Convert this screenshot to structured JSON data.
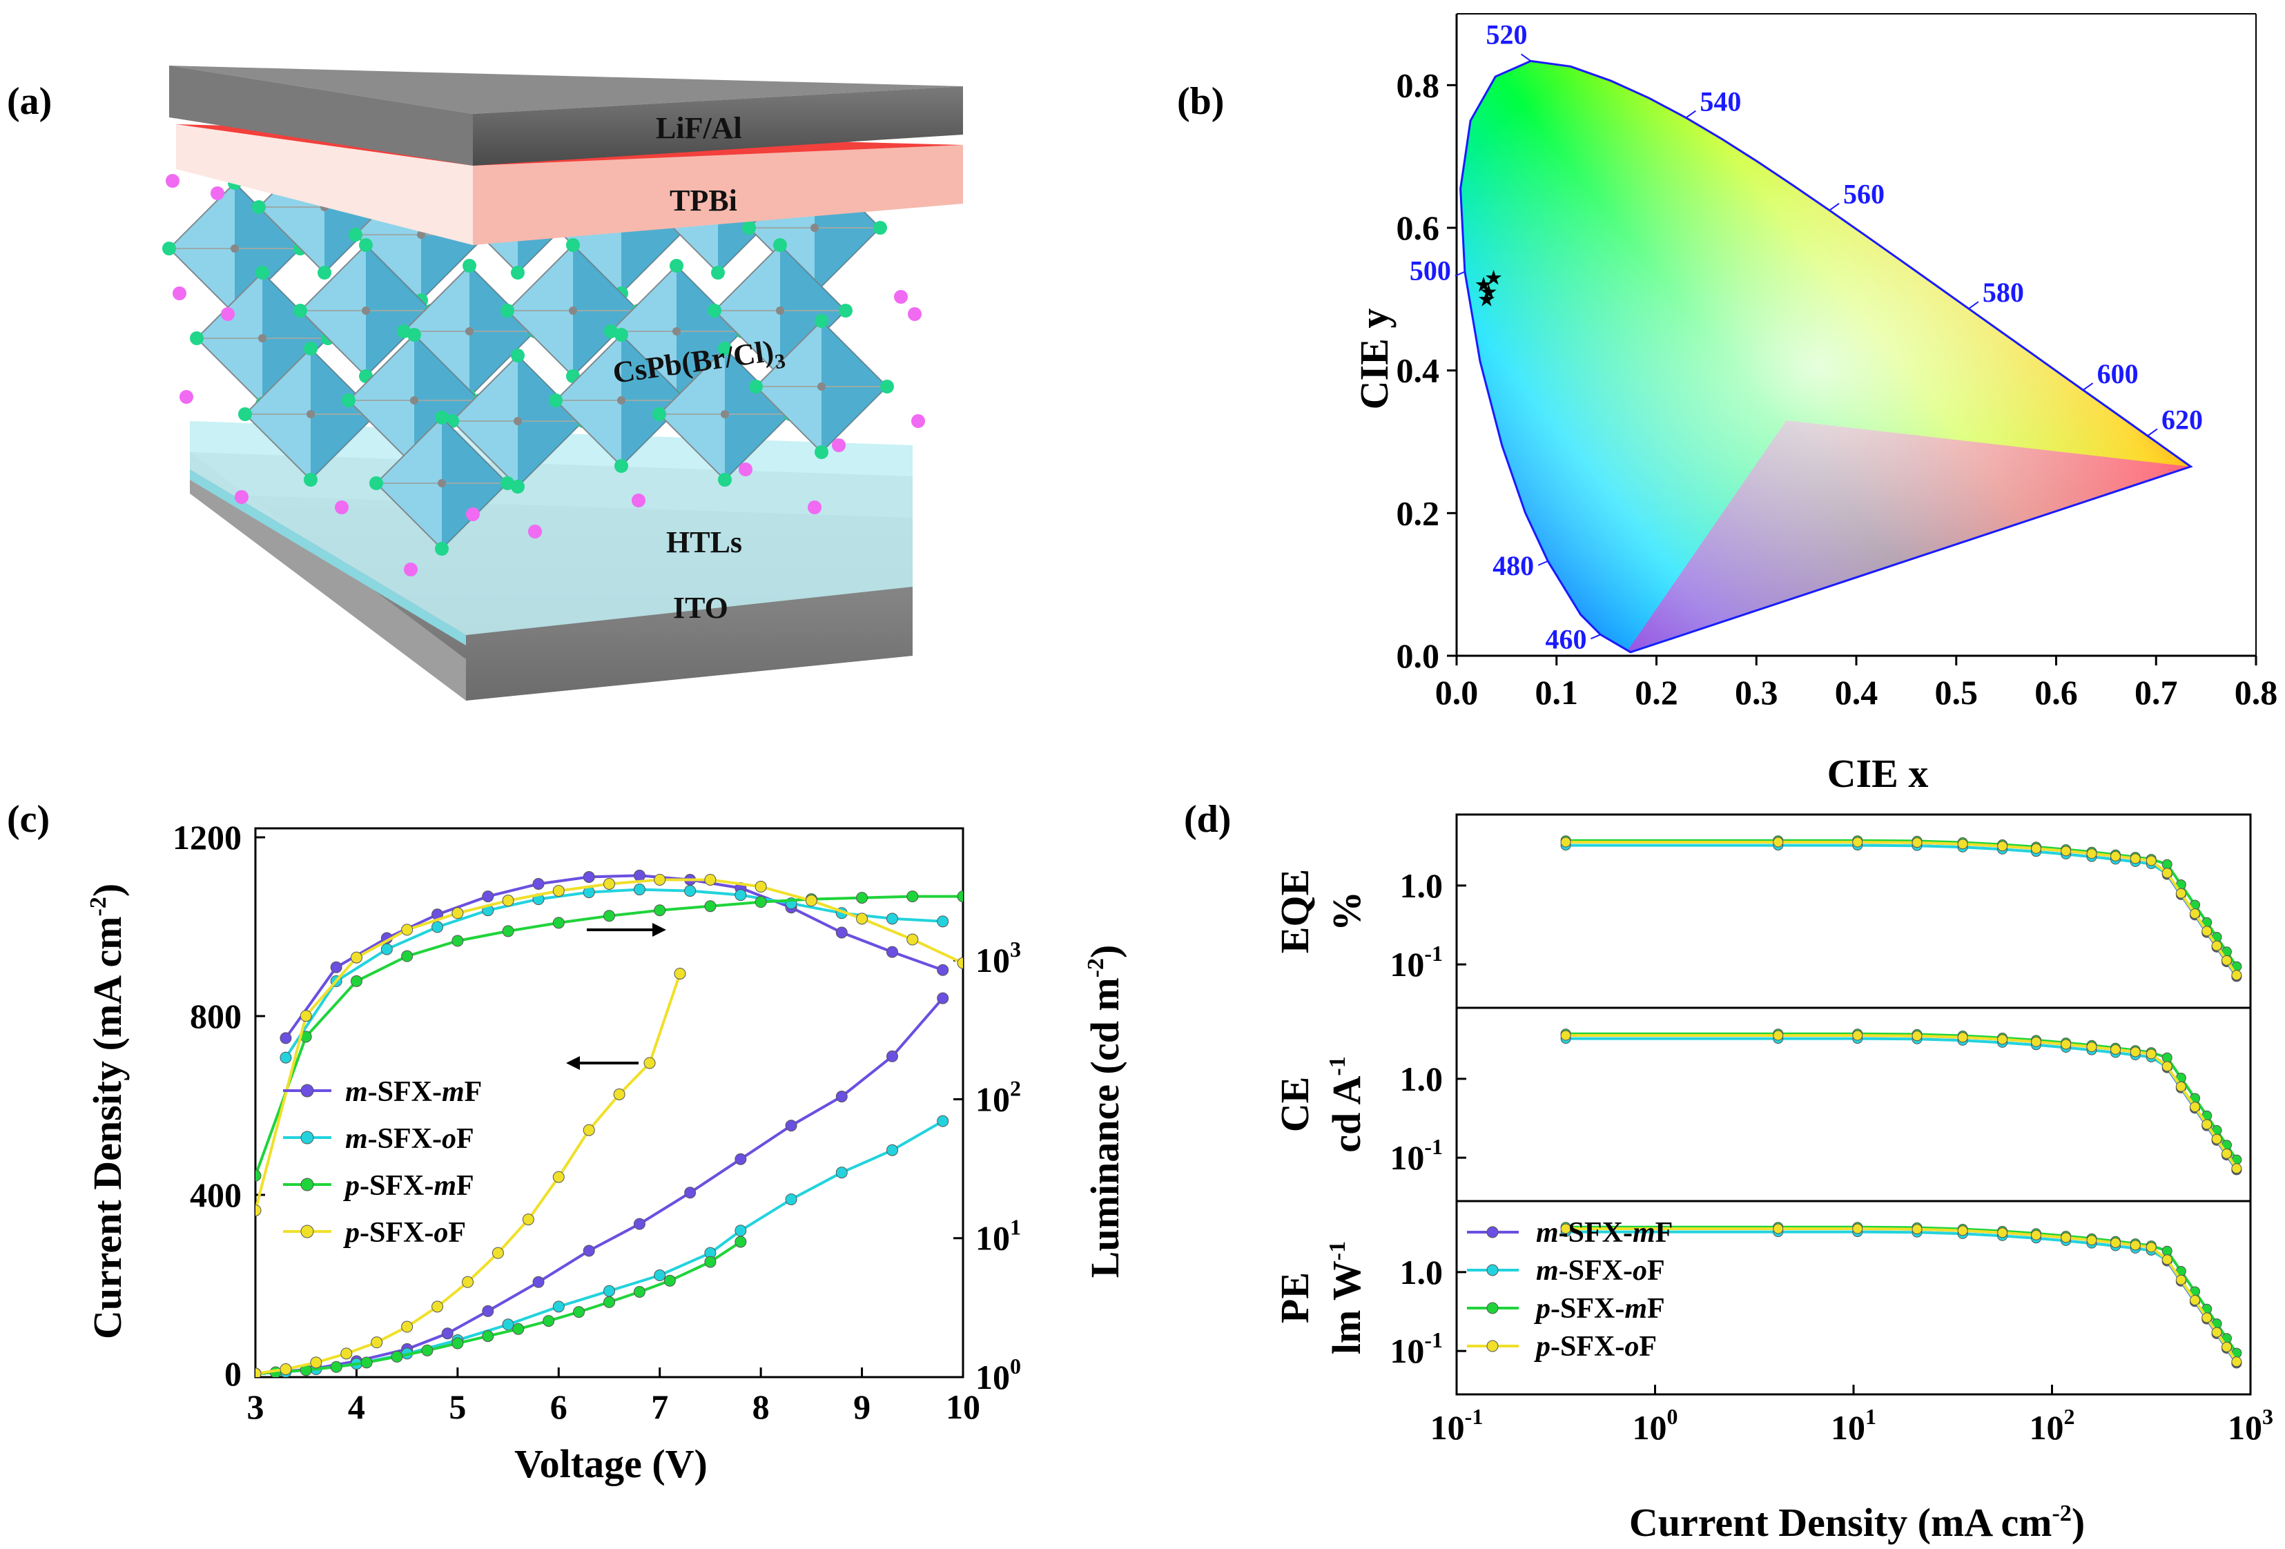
{
  "panels": {
    "a": {
      "label": "(a)",
      "layers": [
        "LiF/Al",
        "TPBi",
        "CsPb(Br/Cl)",
        "HTLs",
        "ITO"
      ],
      "formula_subscript": "3"
    },
    "b": {
      "label": "(b)"
    },
    "c": {
      "label": "(c)"
    },
    "d": {
      "label": "(d)"
    }
  },
  "chart_data": [
    {
      "panel": "b",
      "type": "scatter",
      "xlabel": "CIE x",
      "ylabel": "CIE y",
      "xlim": [
        0.0,
        0.8
      ],
      "ylim": [
        0.0,
        0.9
      ],
      "xticks": [
        "0.0",
        "0.1",
        "0.2",
        "0.3",
        "0.4",
        "0.5",
        "0.6",
        "0.7",
        "0.8"
      ],
      "yticks": [
        "0.0",
        "0.2",
        "0.4",
        "0.6",
        "0.8"
      ],
      "locus": [
        [
          0.1741,
          0.005
        ],
        [
          0.144,
          0.0297
        ],
        [
          0.1241,
          0.0578
        ],
        [
          0.0913,
          0.1327
        ],
        [
          0.0687,
          0.2007
        ],
        [
          0.0454,
          0.295
        ],
        [
          0.0235,
          0.4127
        ],
        [
          0.0082,
          0.5384
        ],
        [
          0.0039,
          0.6548
        ],
        [
          0.0139,
          0.7502
        ],
        [
          0.0389,
          0.812
        ],
        [
          0.0743,
          0.8338
        ],
        [
          0.1142,
          0.8262
        ],
        [
          0.1547,
          0.8059
        ],
        [
          0.1929,
          0.7816
        ],
        [
          0.2296,
          0.7543
        ],
        [
          0.2658,
          0.7243
        ],
        [
          0.3016,
          0.6923
        ],
        [
          0.3373,
          0.6589
        ],
        [
          0.3731,
          0.6245
        ],
        [
          0.4087,
          0.5896
        ],
        [
          0.4441,
          0.5547
        ],
        [
          0.4788,
          0.5202
        ],
        [
          0.5125,
          0.4866
        ],
        [
          0.5448,
          0.4544
        ],
        [
          0.5752,
          0.4242
        ],
        [
          0.6029,
          0.3965
        ],
        [
          0.627,
          0.3725
        ],
        [
          0.6482,
          0.3514
        ],
        [
          0.6658,
          0.334
        ],
        [
          0.6801,
          0.3197
        ],
        [
          0.6915,
          0.3083
        ],
        [
          0.7006,
          0.2993
        ],
        [
          0.7079,
          0.292
        ],
        [
          0.7347,
          0.2653
        ],
        [
          0.1741,
          0.005
        ]
      ],
      "wavelength_labels": [
        {
          "text": "460",
          "x": 0.144,
          "y": 0.0297
        },
        {
          "text": "480",
          "x": 0.0913,
          "y": 0.1327
        },
        {
          "text": "500",
          "x": 0.0082,
          "y": 0.5384
        },
        {
          "text": "520",
          "x": 0.0743,
          "y": 0.8338
        },
        {
          "text": "540",
          "x": 0.2296,
          "y": 0.7543
        },
        {
          "text": "560",
          "x": 0.3731,
          "y": 0.6245
        },
        {
          "text": "580",
          "x": 0.5125,
          "y": 0.4866
        },
        {
          "text": "600",
          "x": 0.627,
          "y": 0.3725
        },
        {
          "text": "620",
          "x": 0.6915,
          "y": 0.3083
        }
      ],
      "points": [
        {
          "x": 0.027,
          "y": 0.52
        },
        {
          "x": 0.032,
          "y": 0.51
        },
        {
          "x": 0.037,
          "y": 0.53
        },
        {
          "x": 0.03,
          "y": 0.5
        }
      ]
    },
    {
      "panel": "c",
      "type": "line",
      "xlabel": "Voltage (V)",
      "ylabel_left": "Current Density (mA cm-2)",
      "ylabel_right": "Luminance (cd m-2)",
      "xlim": [
        3,
        10
      ],
      "ylim_left": [
        0,
        1200
      ],
      "ylim_right_log10": [
        0,
        3.95
      ],
      "xticks": [
        "3",
        "4",
        "5",
        "6",
        "7",
        "8",
        "9",
        "10"
      ],
      "yticks_left": [
        "0",
        "400",
        "800",
        "1200"
      ],
      "yticks_right": [
        {
          "base": "10",
          "exp": "0",
          "v": 0
        },
        {
          "base": "10",
          "exp": "1",
          "v": 1
        },
        {
          "base": "10",
          "exp": "2",
          "v": 2
        },
        {
          "base": "10",
          "exp": "3",
          "v": 3
        }
      ],
      "series": [
        {
          "name_pre": "m",
          "name_mid": "-SFX-",
          "name_post": "m",
          "name_end": "F",
          "color": "#6b4fe0",
          "jv_x": [
            3,
            3.3,
            3.6,
            4,
            4.5,
            4.9,
            5.3,
            5.8,
            6.3,
            6.8,
            7.3,
            7.8,
            8.3,
            8.8,
            9.3,
            9.8
          ],
          "jv_y": [
            0,
            5,
            12,
            28,
            55,
            90,
            140,
            205,
            275,
            335,
            405,
            480,
            555,
            620,
            710,
            840
          ],
          "lum_x": [
            3.3,
            3.8,
            4.3,
            4.8,
            5.3,
            5.8,
            6.3,
            6.8,
            7.3,
            7.8,
            8.3,
            8.8,
            9.3,
            9.8
          ],
          "lum_y": [
            2.44,
            2.95,
            3.16,
            3.33,
            3.46,
            3.55,
            3.6,
            3.61,
            3.58,
            3.52,
            3.38,
            3.2,
            3.06,
            2.93
          ]
        },
        {
          "name_pre": "m",
          "name_mid": "-SFX-",
          "name_post": "o",
          "name_end": "F",
          "color": "#22d3dd",
          "jv_x": [
            3,
            3.3,
            3.6,
            4,
            4.5,
            5,
            5.5,
            6,
            6.5,
            7,
            7.5,
            7.8,
            8.3,
            8.8,
            9.3,
            9.8
          ],
          "jv_y": [
            0,
            4,
            10,
            22,
            45,
            75,
            110,
            150,
            185,
            220,
            270,
            320,
            390,
            450,
            500,
            565
          ],
          "lum_x": [
            3.3,
            3.8,
            4.3,
            4.8,
            5.3,
            5.8,
            6.3,
            6.8,
            7.3,
            7.8,
            8.3,
            8.8,
            9.3,
            9.8
          ],
          "lum_y": [
            2.3,
            2.85,
            3.08,
            3.24,
            3.36,
            3.44,
            3.49,
            3.51,
            3.5,
            3.47,
            3.41,
            3.34,
            3.3,
            3.28
          ]
        },
        {
          "name_pre": "p",
          "name_mid": "-SFX-",
          "name_post": "m",
          "name_end": "F",
          "color": "#1fd43a",
          "jv_x": [
            3,
            3.2,
            3.5,
            3.8,
            4.1,
            4.4,
            4.7,
            5,
            5.3,
            5.6,
            5.9,
            6.2,
            6.5,
            6.8,
            7.1,
            7.5,
            7.8
          ],
          "jv_y": [
            0,
            3,
            8,
            15,
            25,
            38,
            52,
            68,
            84,
            100,
            118,
            138,
            160,
            183,
            208,
            250,
            295
          ],
          "lum_x": [
            3.0,
            3.5,
            4.0,
            4.5,
            5.0,
            5.5,
            6.0,
            6.5,
            7.0,
            7.5,
            8.0,
            8.5,
            9.0,
            9.5,
            10.0
          ],
          "lum_y": [
            1.45,
            2.45,
            2.85,
            3.03,
            3.14,
            3.21,
            3.27,
            3.32,
            3.36,
            3.39,
            3.42,
            3.44,
            3.45,
            3.46,
            3.46
          ]
        },
        {
          "name_pre": "p",
          "name_mid": "-SFX-",
          "name_post": "o",
          "name_end": "F",
          "color": "#f0e02a",
          "jv_x": [
            3,
            3.3,
            3.6,
            3.9,
            4.2,
            4.5,
            4.8,
            5.1,
            5.4,
            5.7,
            6,
            6.3,
            6.6,
            6.9,
            7.2
          ],
          "jv_y": [
            0,
            10,
            25,
            45,
            70,
            105,
            150,
            205,
            270,
            345,
            440,
            545,
            625,
            695,
            895
          ],
          "lum_x": [
            3.0,
            3.5,
            4.0,
            4.5,
            5.0,
            5.5,
            6.0,
            6.5,
            7.0,
            7.5,
            8.0,
            8.5,
            9.0,
            9.5,
            10.0
          ],
          "lum_y": [
            1.2,
            2.6,
            3.02,
            3.22,
            3.34,
            3.43,
            3.5,
            3.55,
            3.58,
            3.58,
            3.53,
            3.43,
            3.3,
            3.15,
            2.98
          ]
        }
      ]
    },
    {
      "panel": "d",
      "type": "line",
      "xlabel": "Current Density (mA cm-2)",
      "xlim_log10": [
        -1,
        3
      ],
      "xticks": [
        {
          "base": "10",
          "exp": "-1",
          "v": -1
        },
        {
          "base": "10",
          "exp": "0",
          "v": 0
        },
        {
          "base": "10",
          "exp": "1",
          "v": 1
        },
        {
          "base": "10",
          "exp": "2",
          "v": 2
        },
        {
          "base": "10",
          "exp": "3",
          "v": 3
        }
      ],
      "ylim_log10": [
        -1.55,
        0.9
      ],
      "yticks": [
        {
          "base": "10",
          "exp": "-1",
          "v": -1,
          "pre": ""
        },
        {
          "base": "",
          "exp": "",
          "v": 0,
          "pre": "1.0"
        }
      ],
      "subplots": [
        {
          "label_line1": "EQE",
          "label_line2": "%",
          "unit_exp": ""
        },
        {
          "label_line1": "CE",
          "label_line2": "cd A",
          "unit_exp": "-1"
        },
        {
          "label_line1": "PE",
          "label_line2": "lm W",
          "unit_exp": "-1"
        }
      ],
      "x": [
        -0.45,
        0.62,
        1.02,
        1.32,
        1.55,
        1.75,
        1.92,
        2.07,
        2.2,
        2.32,
        2.42,
        2.5,
        2.58,
        2.65,
        2.72,
        2.78,
        2.83,
        2.88,
        2.93
      ],
      "series_offsets": [
        0.0,
        -0.04,
        0.02,
        0.0
      ],
      "drop_offsets": [
        0.05,
        0.0,
        -0.06,
        0.03
      ]
    }
  ]
}
